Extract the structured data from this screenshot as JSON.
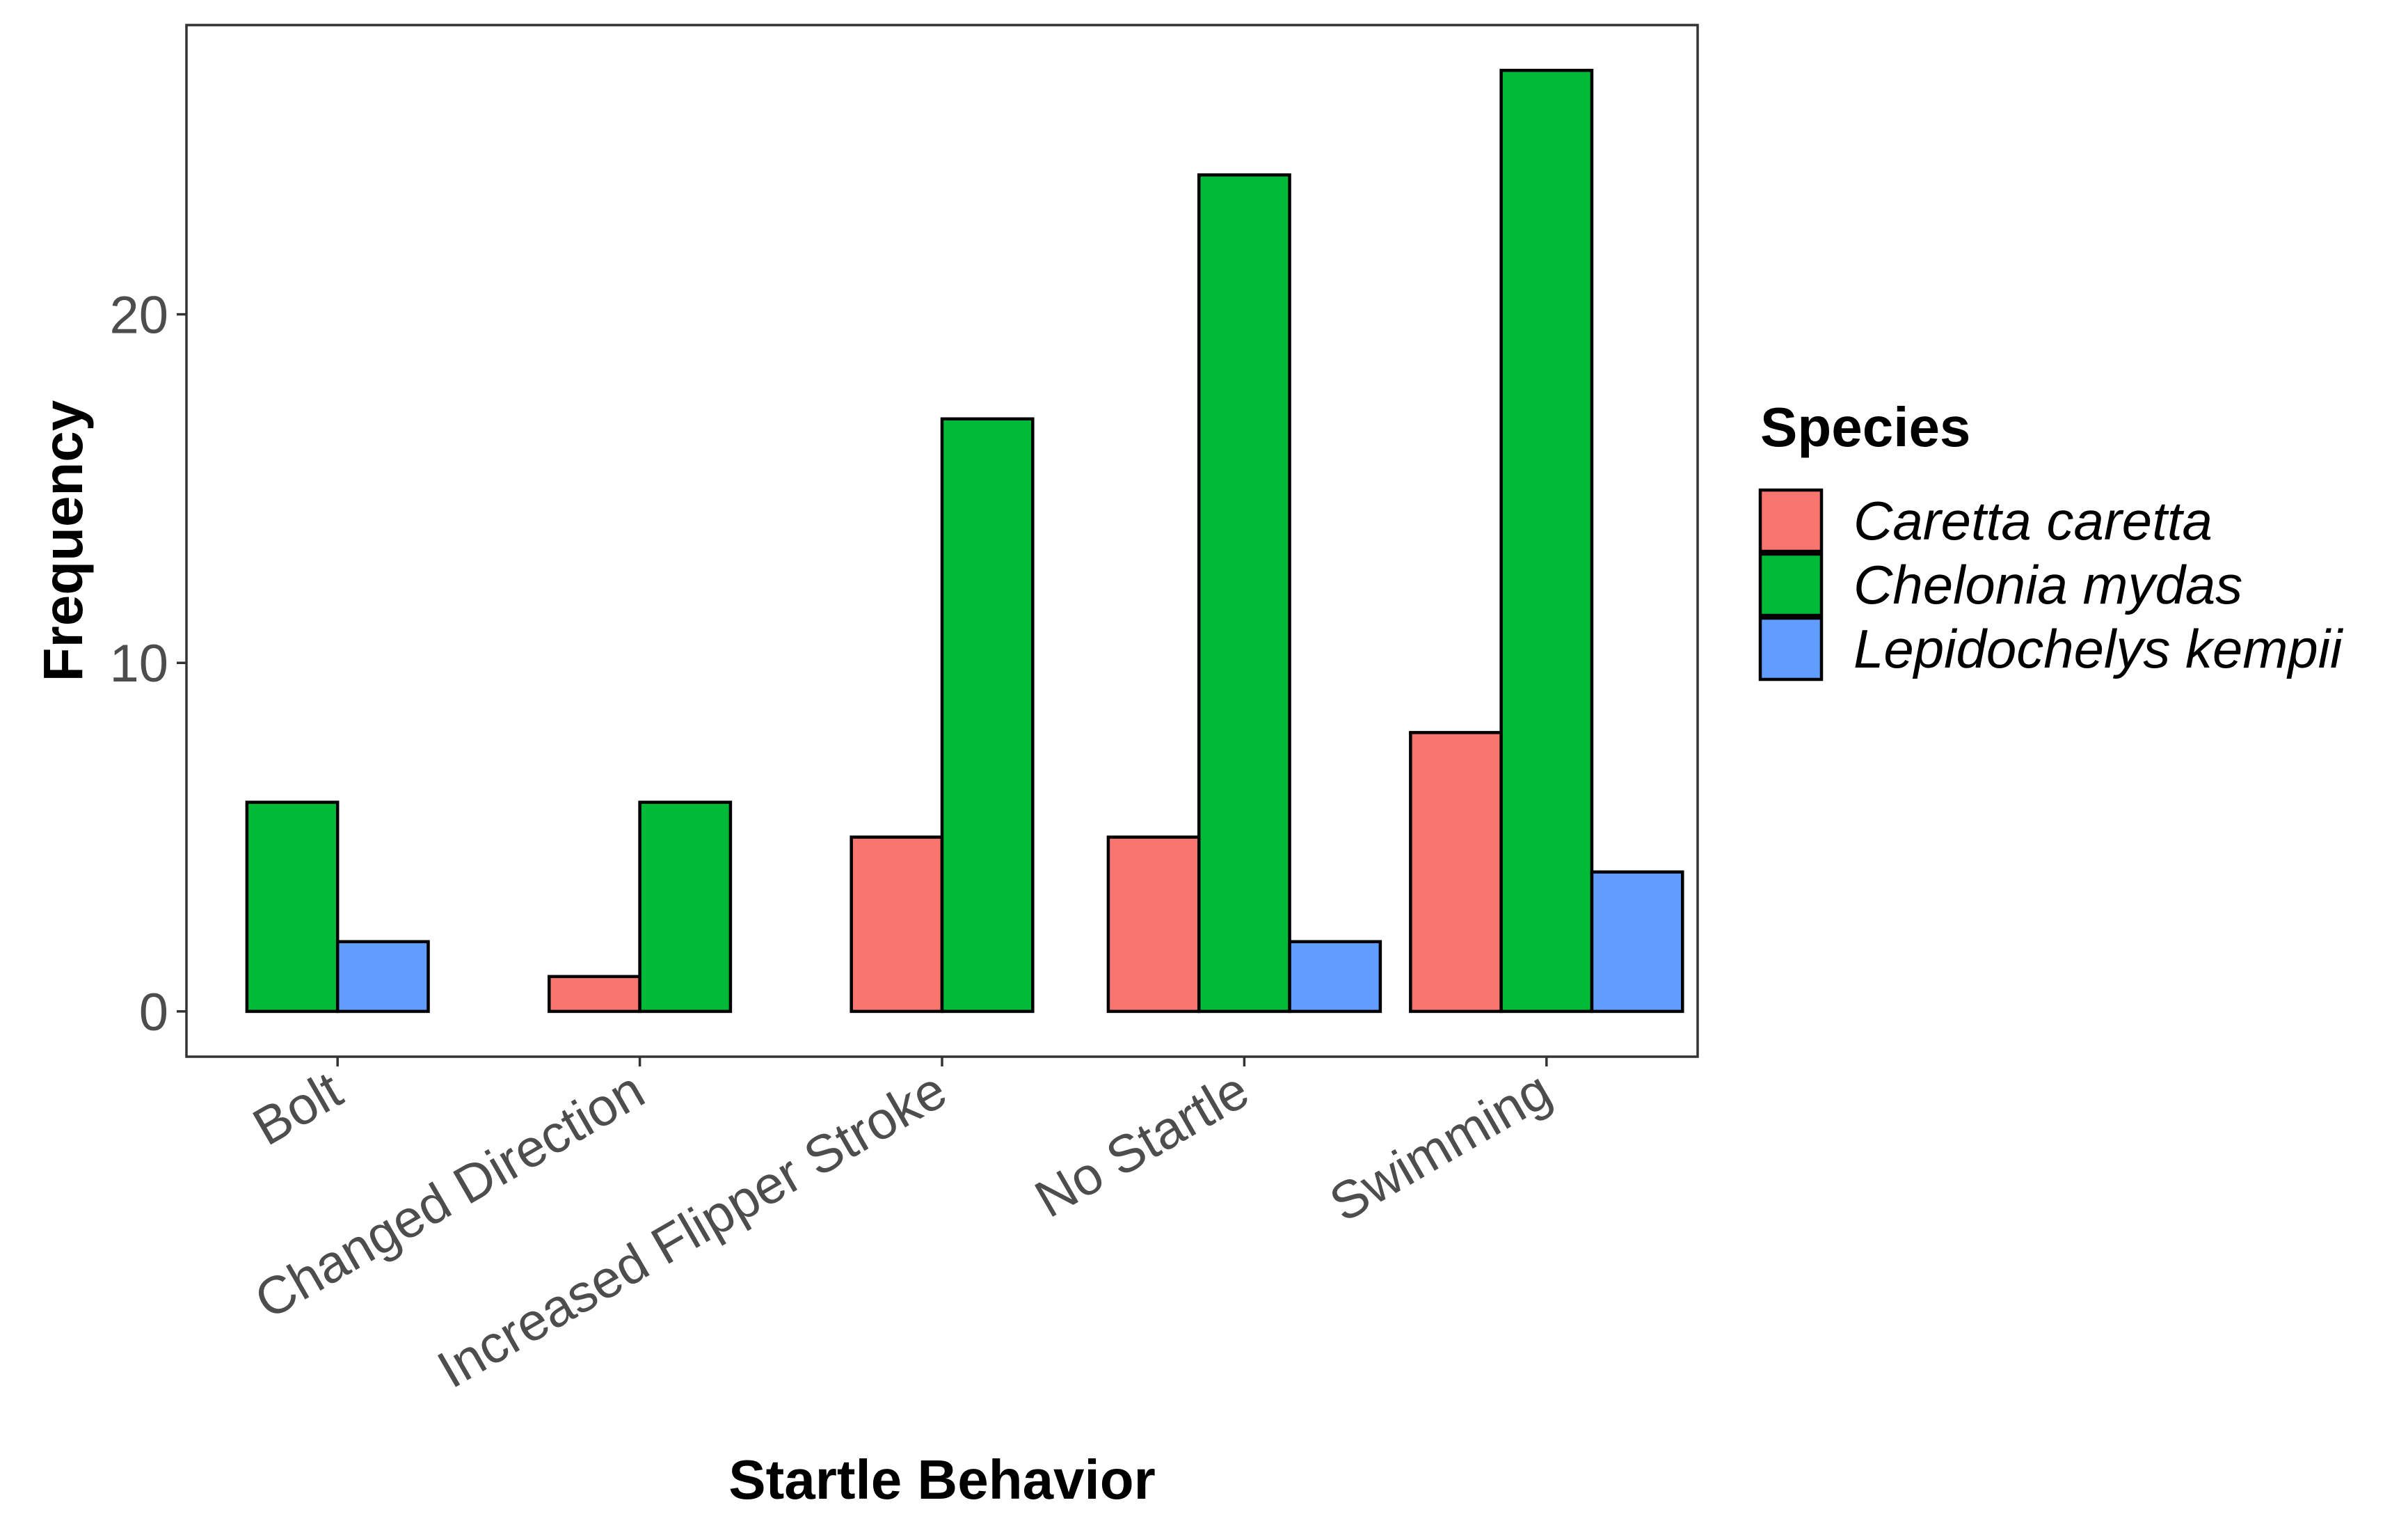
{
  "chart_data": {
    "type": "bar",
    "title": "",
    "xlabel": "Startle Behavior",
    "ylabel": "Frequency",
    "ylim": [
      -1.3,
      28.3
    ],
    "yticks": [
      0,
      10,
      20
    ],
    "ytick_labels": [
      "0",
      "10",
      "20"
    ],
    "categories": [
      "Bolt",
      "Changed Direction",
      "Increased Flipper Stroke",
      "No Startle",
      "Swimming"
    ],
    "legend_title": "Species",
    "legend_position": "right",
    "grid": false,
    "series": [
      {
        "name": "Caretta caretta",
        "color": "#F8766D",
        "values": [
          null,
          1,
          5,
          5,
          8
        ]
      },
      {
        "name": "Chelonia mydas",
        "color": "#00BA38",
        "values": [
          6,
          6,
          17,
          24,
          27
        ]
      },
      {
        "name": "Lepidochelys kempii",
        "color": "#619CFF",
        "values": [
          2,
          null,
          null,
          2,
          4
        ]
      }
    ]
  }
}
